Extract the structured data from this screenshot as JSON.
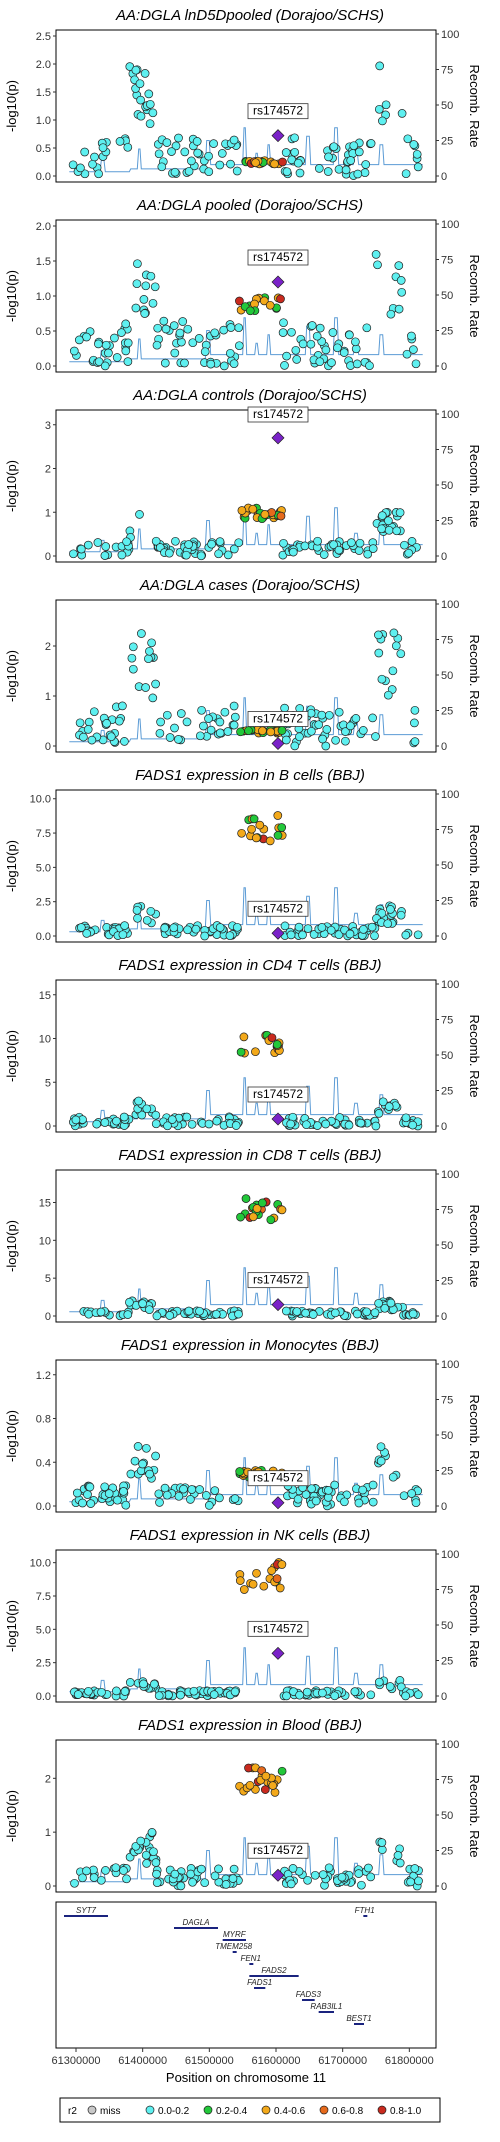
{
  "colors": {
    "miss": "#c8c8c8",
    "r0": "#5ef0f0",
    "r1": "#22c83a",
    "r2": "#f3a91a",
    "r3": "#e66a1c",
    "r4": "#c92a1e",
    "lead": "#7a22c8",
    "recomb": "#5b9bd5"
  },
  "lead_snp": "rs174572",
  "y_right_label": "Recomb. Rate",
  "x_axis": {
    "label": "Position on chromosome 11",
    "ticks": [
      "61300000",
      "61400000",
      "61500000",
      "61600000",
      "61700000",
      "61800000"
    ]
  },
  "legend": {
    "title": "r2",
    "items": [
      {
        "label": "miss",
        "color": "miss"
      },
      {
        "label": "0.0-0.2",
        "color": "r0"
      },
      {
        "label": "0.2-0.4",
        "color": "r1"
      },
      {
        "label": "0.4-0.6",
        "color": "r2"
      },
      {
        "label": "0.6-0.8",
        "color": "r3"
      },
      {
        "label": "0.8-1.0",
        "color": "r4"
      }
    ]
  },
  "genes": [
    {
      "name": "SYT7",
      "start": 61282000,
      "end": 61348000,
      "row": 0
    },
    {
      "name": "DAGLA",
      "start": 61447000,
      "end": 61513000,
      "row": 1
    },
    {
      "name": "MYRF",
      "start": 61520000,
      "end": 61555000,
      "row": 2
    },
    {
      "name": "TMEM258",
      "start": 61535000,
      "end": 61538000,
      "row": 3
    },
    {
      "name": "FEN1",
      "start": 61560000,
      "end": 61564000,
      "row": 4
    },
    {
      "name": "FADS2",
      "start": 61560000,
      "end": 61634000,
      "row": 5
    },
    {
      "name": "FADS1",
      "start": 61567000,
      "end": 61584000,
      "row": 6
    },
    {
      "name": "FADS3",
      "start": 61639000,
      "end": 61658000,
      "row": 7
    },
    {
      "name": "RAB3IL1",
      "start": 61664000,
      "end": 61687000,
      "row": 8
    },
    {
      "name": "BEST1",
      "start": 61717000,
      "end": 61732000,
      "row": 9
    },
    {
      "name": "FTH1",
      "start": 61731000,
      "end": 61735000,
      "row": 0
    }
  ],
  "chart_data": [
    {
      "type": "scatter",
      "title": "AA:DGLA lnD5Dpooled (Dorajoo/SCHS)",
      "ylabel": "-log10(p)",
      "ylim": [
        0,
        2.5
      ],
      "yticks": [
        0,
        0.5,
        1.0,
        1.5,
        2.0,
        2.5
      ],
      "ytick_labels": [
        "0.0",
        "0.5",
        "1.0",
        "1.5",
        "2.0",
        "2.5"
      ],
      "lead_value": 0.72,
      "top_value": 2.0,
      "mid_value": 0.25
    },
    {
      "type": "scatter",
      "title": "AA:DGLA pooled (Dorajoo/SCHS)",
      "ylabel": "-log10(p)",
      "ylim": [
        0,
        2.0
      ],
      "yticks": [
        0,
        0.5,
        1.0,
        1.5,
        2.0
      ],
      "ytick_labels": [
        "0.0",
        "0.5",
        "1.0",
        "1.5",
        "2.0"
      ],
      "lead_value": 1.2,
      "top_value": 1.85,
      "mid_value": 0.9
    },
    {
      "type": "scatter",
      "title": "AA:DGLA controls (Dorajoo/SCHS)",
      "ylabel": "-log10(p)",
      "ylim": [
        0,
        3.2
      ],
      "yticks": [
        0,
        1,
        2,
        3
      ],
      "ytick_labels": [
        "0",
        "1",
        "2",
        "3"
      ],
      "lead_value": 2.7,
      "top_value": 1.0,
      "mid_value": 1.0
    },
    {
      "type": "scatter",
      "title": "AA:DGLA cases (Dorajoo/SCHS)",
      "ylabel": "-log10(p)",
      "ylim": [
        0,
        2.8
      ],
      "yticks": [
        0,
        1,
        2
      ],
      "ytick_labels": [
        "0",
        "1",
        "2"
      ],
      "lead_value": 0.05,
      "top_value": 2.3,
      "mid_value": 0.3
    },
    {
      "type": "scatter",
      "title": "FADS1 expression in B cells (BBJ)",
      "ylabel": "-log10(p)",
      "ylim": [
        0,
        10.2
      ],
      "yticks": [
        0,
        2.5,
        5.0,
        7.5,
        10.0
      ],
      "ytick_labels": [
        "0.0",
        "2.5",
        "5.0",
        "7.5",
        "10.0"
      ],
      "lead_value": 0.2,
      "top_value": 2.2,
      "mid_value": 8.0
    },
    {
      "type": "scatter",
      "title": "FADS1 expression in CD4 T cells (BBJ)",
      "ylabel": "-log10(p)",
      "ylim": [
        0,
        16
      ],
      "yticks": [
        0,
        5,
        10,
        15
      ],
      "ytick_labels": [
        "0",
        "5",
        "10",
        "15"
      ],
      "lead_value": 0.8,
      "top_value": 3.0,
      "mid_value": 9.5
    },
    {
      "type": "scatter",
      "title": "FADS1 expression in CD8 T cells (BBJ)",
      "ylabel": "-log10(p)",
      "ylim": [
        0,
        18.5
      ],
      "yticks": [
        0,
        5,
        10,
        15
      ],
      "ytick_labels": [
        "0",
        "5",
        "10",
        "15"
      ],
      "lead_value": 1.5,
      "top_value": 2.0,
      "mid_value": 14.5
    },
    {
      "type": "scatter",
      "title": "FADS1 expression in Monocytes (BBJ)",
      "ylabel": "-log10(p)",
      "ylim": [
        0,
        1.28
      ],
      "yticks": [
        0,
        0.4,
        0.8,
        1.2
      ],
      "ytick_labels": [
        "0.0",
        "0.4",
        "0.8",
        "1.2"
      ],
      "lead_value": 0.03,
      "top_value": 0.55,
      "mid_value": 0.3
    },
    {
      "type": "scatter",
      "title": "FADS1 expression in NK cells (BBJ)",
      "ylabel": "-log10(p)",
      "ylim": [
        0,
        10.5
      ],
      "yticks": [
        0,
        2.5,
        5.0,
        7.5,
        10.0
      ],
      "ytick_labels": [
        "0.0",
        "2.5",
        "5.0",
        "7.5",
        "10.0"
      ],
      "lead_value": 3.2,
      "top_value": 1.2,
      "mid_value": 9.2
    },
    {
      "type": "scatter",
      "title": "FADS1 expression in Blood (BBJ)",
      "ylabel": "-log10(p)",
      "ylim": [
        0,
        2.6
      ],
      "yticks": [
        0,
        1,
        2
      ],
      "ytick_labels": [
        "0",
        "1",
        "2"
      ],
      "lead_value": 0.2,
      "top_value": 1.0,
      "mid_value": 2.0
    }
  ]
}
